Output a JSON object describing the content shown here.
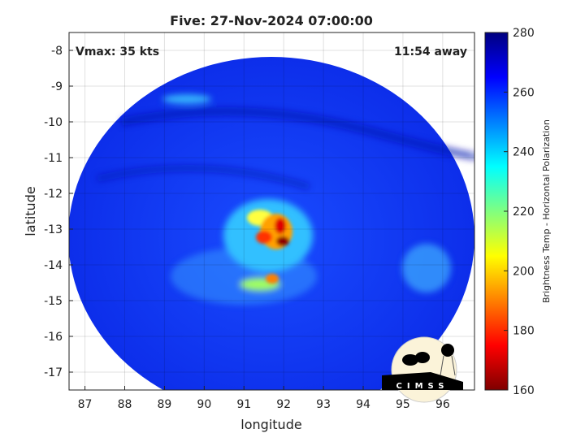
{
  "chart_data": {
    "type": "heatmap",
    "title": "Five: 27-Nov-2024 07:00:00",
    "xlabel": "longitude",
    "ylabel": "latitude",
    "xlim": [
      86.6,
      96.8
    ],
    "ylim": [
      -17.5,
      -7.5
    ],
    "xticks": [
      "87",
      "88",
      "89",
      "90",
      "91",
      "92",
      "93",
      "94",
      "95",
      "96"
    ],
    "yticks": [
      "-8",
      "-9",
      "-10",
      "-11",
      "-12",
      "-13",
      "-14",
      "-15",
      "-16",
      "-17"
    ],
    "grid": true,
    "annotations": {
      "left": "Vmax: 35 kts",
      "right": "11:54 away"
    },
    "colorbar": {
      "label": "Brightness Temp - Horizontal Polarization",
      "range": [
        160,
        280
      ],
      "ticks": [
        "160",
        "180",
        "200",
        "220",
        "240",
        "260",
        "280"
      ],
      "colormap": "jet"
    },
    "storm_center": {
      "lon": 91.8,
      "lat": -13.2,
      "min_temp": 165
    },
    "logo": "CIMSS"
  }
}
